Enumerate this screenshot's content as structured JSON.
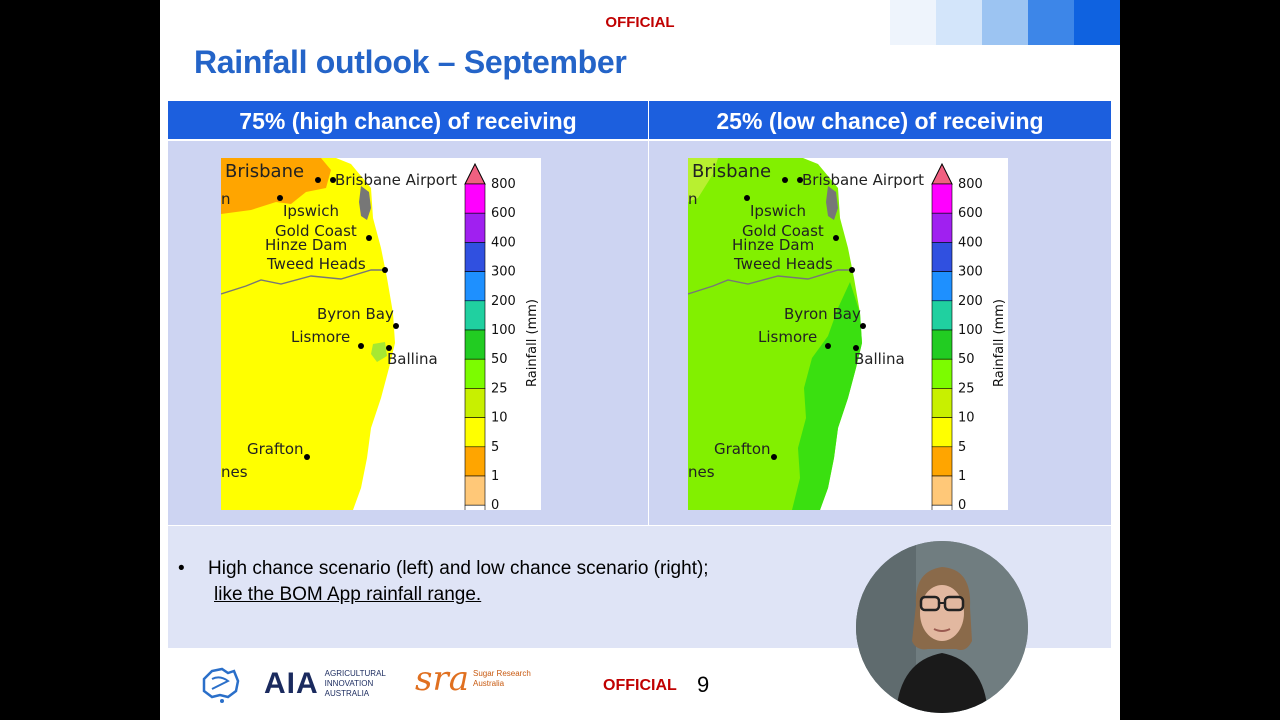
{
  "header": {
    "classification": "OFFICIAL"
  },
  "slide": {
    "title": "Rainfall outlook – September"
  },
  "panels": {
    "left": {
      "heading": "75% (high chance) of receiving"
    },
    "right": {
      "heading": "25% (low chance) of receiving"
    }
  },
  "map": {
    "places": {
      "brisbane": "Brisbane",
      "brisbane_airport": "Brisbane Airport",
      "ipswich": "Ipswich",
      "gold_coast": "Gold Coast",
      "hinze_dam": "Hinze Dam",
      "tweed_heads": "Tweed Heads",
      "byron_bay": "Byron Bay",
      "lismore": "Lismore",
      "ballina": "Ballina",
      "grafton": "Grafton",
      "partial_n": "n",
      "partial_nes": "nes"
    },
    "legend": {
      "axis_label": "Rainfall (mm)",
      "ticks": [
        "800",
        "600",
        "400",
        "300",
        "200",
        "100",
        "50",
        "25",
        "10",
        "5",
        "1",
        "0"
      ],
      "colors": [
        "#ff00ff",
        "#a020f0",
        "#3050e0",
        "#1e90ff",
        "#20d0a0",
        "#22cc22",
        "#7cfc00",
        "#c8f000",
        "#ffff00",
        "#ffa500",
        "#ffc878",
        "#ffffff"
      ]
    },
    "left_scenario_colors": {
      "main": "#ffff00",
      "north": "#ffa500",
      "coast": "#a6e832"
    },
    "right_scenario_colors": {
      "main": "#82f000",
      "coast": "#3ae010"
    }
  },
  "notes": {
    "bullet": "•",
    "line1": "High chance scenario (left) and low chance scenario (right);",
    "line2": "like the BOM App rainfall range."
  },
  "footer": {
    "classification": "OFFICIAL",
    "page_number": "9",
    "aia_mark": "AIA",
    "aia_name": [
      "AGRICULTURAL",
      "INNOVATION",
      "AUSTRALIA"
    ],
    "sra_mark": "sra",
    "sra_name": [
      "Sugar Research",
      "Australia"
    ]
  }
}
